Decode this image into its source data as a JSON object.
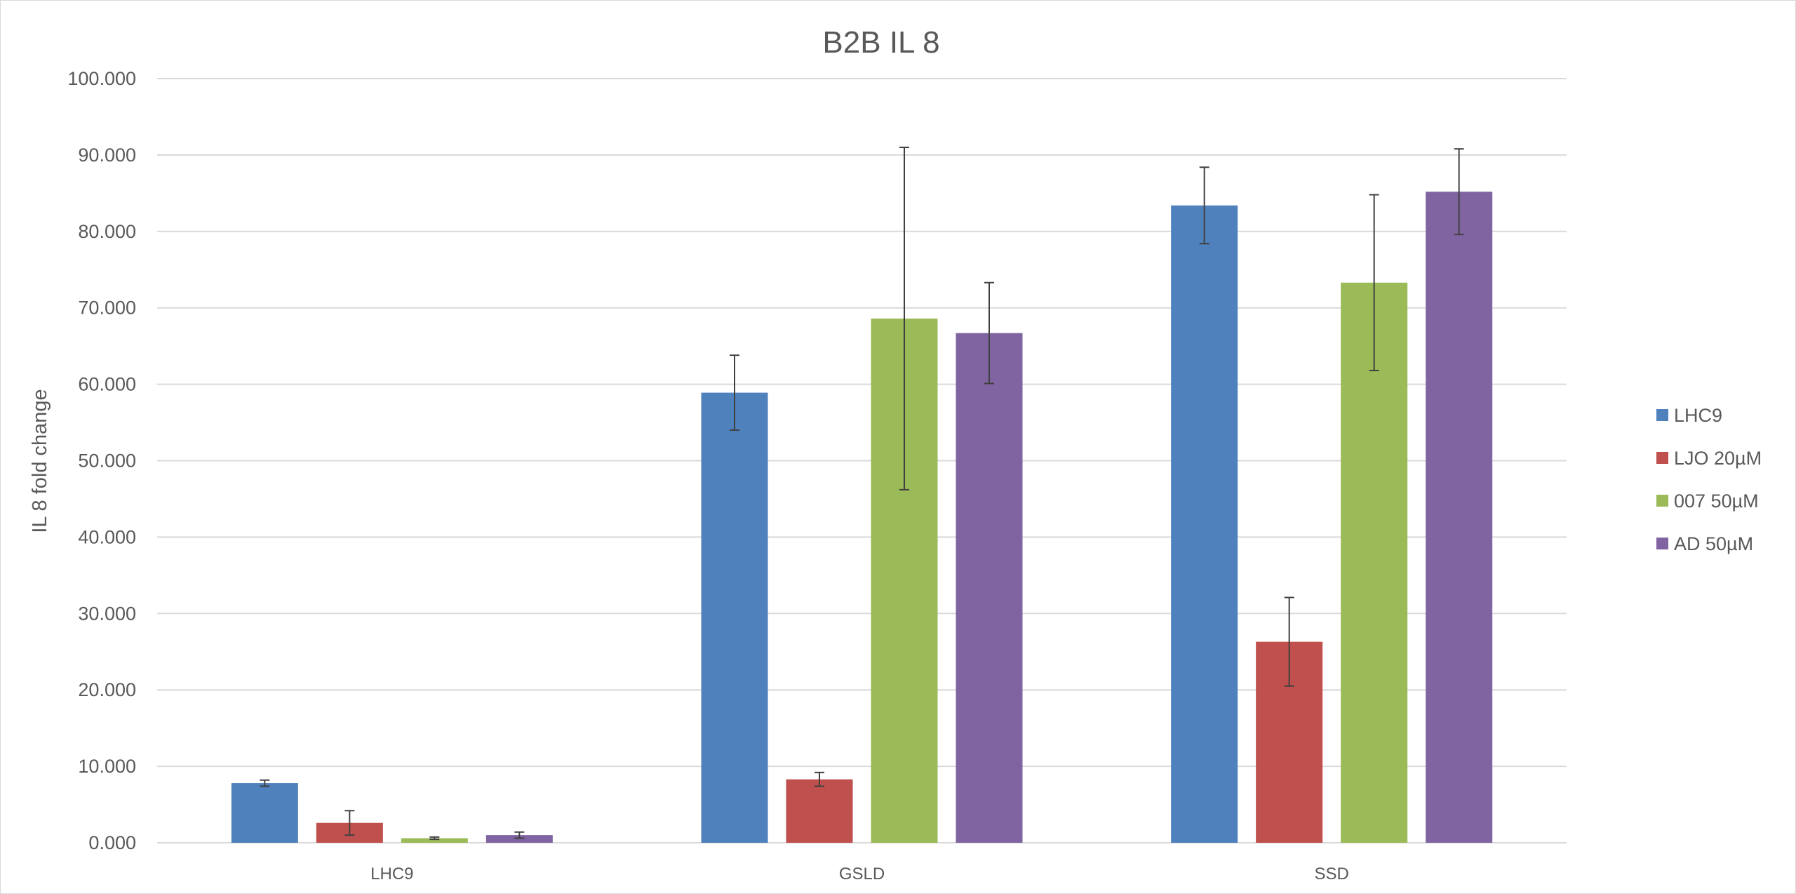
{
  "chart_data": {
    "type": "bar",
    "title": "B2B IL 8",
    "xlabel": "",
    "ylabel": "IL 8 fold change",
    "ylim": [
      0,
      100
    ],
    "y_ticks": [
      "0.000",
      "10.000",
      "20.000",
      "30.000",
      "40.000",
      "50.000",
      "60.000",
      "70.000",
      "80.000",
      "90.000",
      "100.000"
    ],
    "categories": [
      "LHC9",
      "GSLD",
      "SSD"
    ],
    "series": [
      {
        "name": "LHC9",
        "color": "#4f81bd",
        "values": [
          7.8,
          58.9,
          83.4
        ],
        "errors": [
          0.4,
          4.9,
          5.0
        ]
      },
      {
        "name": "LJO 20µM",
        "color": "#c0504d",
        "values": [
          2.6,
          8.3,
          26.3
        ],
        "errors": [
          1.6,
          0.9,
          5.8
        ]
      },
      {
        "name": "007 50µM",
        "color": "#9bbb59",
        "values": [
          0.6,
          68.6,
          73.3
        ],
        "errors": [
          0.15,
          22.4,
          11.5
        ]
      },
      {
        "name": "AD 50µM",
        "color": "#8064a2",
        "values": [
          1.0,
          66.7,
          85.2
        ],
        "errors": [
          0.4,
          6.6,
          5.6
        ]
      }
    ],
    "grid": true,
    "legend_position": "right"
  }
}
